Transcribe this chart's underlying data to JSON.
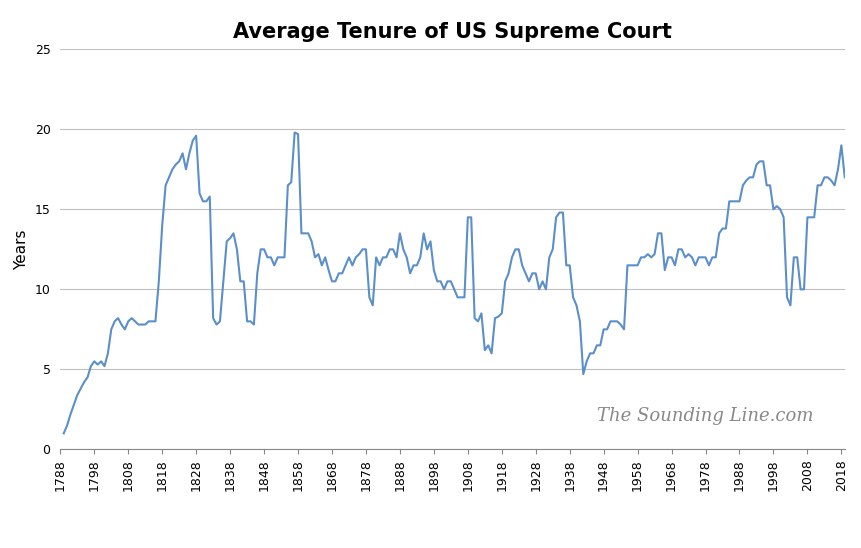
{
  "title": "Average Tenure of US Supreme Court",
  "ylabel": "Years",
  "watermark": "The Sounding Line.com",
  "line_color": "#5b8fc9",
  "background_color": "#ffffff",
  "grid_color": "#c0c0c0",
  "ylim": [
    0,
    25
  ],
  "yticks": [
    0,
    5,
    10,
    15,
    20,
    25
  ],
  "xlim": [
    1788,
    2019
  ],
  "title_fontsize": 15,
  "axis_label_fontsize": 11,
  "tick_fontsize": 9,
  "watermark_fontsize": 13,
  "data": {
    "1789": 1.0,
    "1790": 1.5,
    "1791": 2.2,
    "1792": 2.8,
    "1793": 3.4,
    "1794": 3.8,
    "1795": 4.2,
    "1796": 4.5,
    "1797": 5.2,
    "1798": 5.5,
    "1799": 5.3,
    "1800": 5.5,
    "1801": 5.2,
    "1802": 6.0,
    "1803": 7.5,
    "1804": 8.0,
    "1805": 8.2,
    "1806": 7.8,
    "1807": 7.5,
    "1808": 8.0,
    "1809": 8.2,
    "1810": 8.0,
    "1811": 7.8,
    "1812": 7.8,
    "1813": 7.8,
    "1814": 8.0,
    "1815": 8.0,
    "1816": 8.0,
    "1817": 10.5,
    "1818": 14.0,
    "1819": 16.5,
    "1820": 17.0,
    "1821": 17.5,
    "1822": 17.8,
    "1823": 18.0,
    "1824": 18.5,
    "1825": 17.5,
    "1826": 18.5,
    "1827": 19.3,
    "1828": 19.6,
    "1829": 16.0,
    "1830": 15.5,
    "1831": 15.5,
    "1832": 15.8,
    "1833": 8.2,
    "1834": 7.8,
    "1835": 8.0,
    "1836": 10.5,
    "1837": 13.0,
    "1838": 13.2,
    "1839": 13.5,
    "1840": 12.5,
    "1841": 10.5,
    "1842": 10.5,
    "1843": 8.0,
    "1844": 8.0,
    "1845": 7.8,
    "1846": 11.0,
    "1847": 12.5,
    "1848": 12.5,
    "1849": 12.0,
    "1850": 12.0,
    "1851": 11.5,
    "1852": 12.0,
    "1853": 12.0,
    "1854": 12.0,
    "1855": 16.5,
    "1856": 16.7,
    "1857": 19.8,
    "1858": 19.7,
    "1859": 13.5,
    "1860": 13.5,
    "1861": 13.5,
    "1862": 13.0,
    "1863": 12.0,
    "1864": 12.2,
    "1865": 11.5,
    "1866": 12.0,
    "1867": 11.2,
    "1868": 10.5,
    "1869": 10.5,
    "1870": 11.0,
    "1871": 11.0,
    "1872": 11.5,
    "1873": 12.0,
    "1874": 11.5,
    "1875": 12.0,
    "1876": 12.2,
    "1877": 12.5,
    "1878": 12.5,
    "1879": 9.5,
    "1880": 9.0,
    "1881": 12.0,
    "1882": 11.5,
    "1883": 12.0,
    "1884": 12.0,
    "1885": 12.5,
    "1886": 12.5,
    "1887": 12.0,
    "1888": 13.5,
    "1889": 12.5,
    "1890": 12.0,
    "1891": 11.0,
    "1892": 11.5,
    "1893": 11.5,
    "1894": 12.0,
    "1895": 13.5,
    "1896": 12.5,
    "1897": 13.0,
    "1898": 11.2,
    "1899": 10.5,
    "1900": 10.5,
    "1901": 10.0,
    "1902": 10.5,
    "1903": 10.5,
    "1904": 10.0,
    "1905": 9.5,
    "1906": 9.5,
    "1907": 9.5,
    "1908": 14.5,
    "1909": 14.5,
    "1910": 8.2,
    "1911": 8.0,
    "1912": 8.5,
    "1913": 6.2,
    "1914": 6.5,
    "1915": 6.0,
    "1916": 8.2,
    "1917": 8.3,
    "1918": 8.5,
    "1919": 10.5,
    "1920": 11.0,
    "1921": 12.0,
    "1922": 12.5,
    "1923": 12.5,
    "1924": 11.5,
    "1925": 11.0,
    "1926": 10.5,
    "1927": 11.0,
    "1928": 11.0,
    "1929": 10.0,
    "1930": 10.5,
    "1931": 10.0,
    "1932": 12.0,
    "1933": 12.5,
    "1934": 14.5,
    "1935": 14.8,
    "1936": 14.8,
    "1937": 11.5,
    "1938": 11.5,
    "1939": 9.5,
    "1940": 9.0,
    "1941": 8.0,
    "1942": 4.7,
    "1943": 5.5,
    "1944": 6.0,
    "1945": 6.0,
    "1946": 6.5,
    "1947": 6.5,
    "1948": 7.5,
    "1949": 7.5,
    "1950": 8.0,
    "1951": 8.0,
    "1952": 8.0,
    "1953": 7.8,
    "1954": 7.5,
    "1955": 11.5,
    "1956": 11.5,
    "1957": 11.5,
    "1958": 11.5,
    "1959": 12.0,
    "1960": 12.0,
    "1961": 12.2,
    "1962": 12.0,
    "1963": 12.2,
    "1964": 13.5,
    "1965": 13.5,
    "1966": 11.2,
    "1967": 12.0,
    "1968": 12.0,
    "1969": 11.5,
    "1970": 12.5,
    "1971": 12.5,
    "1972": 12.0,
    "1973": 12.2,
    "1974": 12.0,
    "1975": 11.5,
    "1976": 12.0,
    "1977": 12.0,
    "1978": 12.0,
    "1979": 11.5,
    "1980": 12.0,
    "1981": 12.0,
    "1982": 13.5,
    "1983": 13.8,
    "1984": 13.8,
    "1985": 15.5,
    "1986": 15.5,
    "1987": 15.5,
    "1988": 15.5,
    "1989": 16.5,
    "1990": 16.8,
    "1991": 17.0,
    "1992": 17.0,
    "1993": 17.8,
    "1994": 18.0,
    "1995": 18.0,
    "1996": 16.5,
    "1997": 16.5,
    "1998": 15.0,
    "1999": 15.2,
    "2000": 15.0,
    "2001": 14.5,
    "2002": 9.5,
    "2003": 9.0,
    "2004": 12.0,
    "2005": 12.0,
    "2006": 10.0,
    "2007": 10.0,
    "2008": 14.5,
    "2009": 14.5,
    "2010": 14.5,
    "2011": 16.5,
    "2012": 16.5,
    "2013": 17.0,
    "2014": 17.0,
    "2015": 16.8,
    "2016": 16.5,
    "2017": 17.5,
    "2018": 19.0,
    "2019": 17.0
  }
}
